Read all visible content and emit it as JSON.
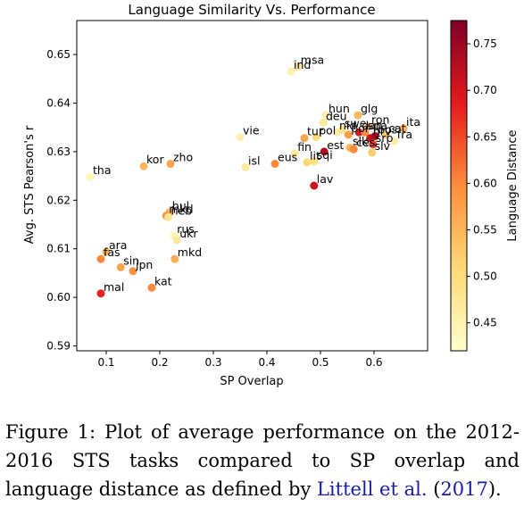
{
  "chart_data": {
    "type": "scatter",
    "title": "Language Similarity Vs. Performance",
    "xlabel": "SP Overlap",
    "ylabel": "Avg. STS Pearson's r",
    "xlim": [
      0.045,
      0.7
    ],
    "ylim": [
      0.589,
      0.657
    ],
    "xticks": [
      "0.1",
      "0.2",
      "0.3",
      "0.4",
      "0.5",
      "0.6"
    ],
    "xtick_values": [
      0.1,
      0.2,
      0.3,
      0.4,
      0.5,
      0.6
    ],
    "yticks": [
      "0.59",
      "0.60",
      "0.61",
      "0.62",
      "0.63",
      "0.64",
      "0.65"
    ],
    "ytick_values": [
      0.59,
      0.6,
      0.61,
      0.62,
      0.63,
      0.64,
      0.65
    ],
    "grid": false,
    "colorbar": {
      "label": "Language Distance",
      "colormap": "YlOrRd",
      "range": [
        0.42,
        0.775
      ],
      "ticks": [
        "0.45",
        "0.50",
        "0.55",
        "0.60",
        "0.65",
        "0.70",
        "0.75"
      ],
      "tick_values": [
        0.45,
        0.5,
        0.55,
        0.6,
        0.65,
        0.7,
        0.75
      ]
    },
    "points": [
      {
        "label": "tha",
        "x": 0.07,
        "y": 0.6248,
        "c": 0.44
      },
      {
        "label": "kor",
        "x": 0.17,
        "y": 0.627,
        "c": 0.55
      },
      {
        "label": "zho",
        "x": 0.22,
        "y": 0.6275,
        "c": 0.57
      },
      {
        "label": "vie",
        "x": 0.35,
        "y": 0.633,
        "c": 0.45
      },
      {
        "label": "isl",
        "x": 0.36,
        "y": 0.6268,
        "c": 0.47
      },
      {
        "label": "eus",
        "x": 0.415,
        "y": 0.6275,
        "c": 0.6
      },
      {
        "label": "ind",
        "x": 0.445,
        "y": 0.6465,
        "c": 0.45
      },
      {
        "label": "msa",
        "x": 0.458,
        "y": 0.6475,
        "c": 0.47
      },
      {
        "label": "fin",
        "x": 0.452,
        "y": 0.6296,
        "c": 0.47
      },
      {
        "label": "lit",
        "x": 0.475,
        "y": 0.6278,
        "c": 0.51
      },
      {
        "label": "sqi",
        "x": 0.488,
        "y": 0.628,
        "c": 0.49
      },
      {
        "label": "lav",
        "x": 0.488,
        "y": 0.623,
        "c": 0.71
      },
      {
        "label": "tur",
        "x": 0.47,
        "y": 0.6328,
        "c": 0.57
      },
      {
        "label": "pol",
        "x": 0.492,
        "y": 0.633,
        "c": 0.5
      },
      {
        "label": "est",
        "x": 0.507,
        "y": 0.63,
        "c": 0.73
      },
      {
        "label": "hun",
        "x": 0.51,
        "y": 0.6375,
        "c": 0.45
      },
      {
        "label": "deu",
        "x": 0.505,
        "y": 0.636,
        "c": 0.47
      },
      {
        "label": "nld",
        "x": 0.53,
        "y": 0.634,
        "c": 0.46
      },
      {
        "label": "swe",
        "x": 0.54,
        "y": 0.6345,
        "c": 0.48
      },
      {
        "label": "por",
        "x": 0.552,
        "y": 0.6335,
        "c": 0.58
      },
      {
        "label": "slk",
        "x": 0.555,
        "y": 0.6308,
        "c": 0.55
      },
      {
        "label": "ces",
        "x": 0.562,
        "y": 0.6305,
        "c": 0.6
      },
      {
        "label": "glg",
        "x": 0.57,
        "y": 0.6375,
        "c": 0.55
      },
      {
        "label": "dan",
        "x": 0.572,
        "y": 0.634,
        "c": 0.7
      },
      {
        "label": "spa",
        "x": 0.583,
        "y": 0.634,
        "c": 0.6
      },
      {
        "label": "ron",
        "x": 0.59,
        "y": 0.6352,
        "c": 0.55
      },
      {
        "label": "hrv",
        "x": 0.593,
        "y": 0.6328,
        "c": 0.71
      },
      {
        "label": "srp",
        "x": 0.598,
        "y": 0.6315,
        "c": 0.66
      },
      {
        "label": "bos",
        "x": 0.602,
        "y": 0.6332,
        "c": 0.74
      },
      {
        "label": "slv",
        "x": 0.596,
        "y": 0.6298,
        "c": 0.52
      },
      {
        "label": "cat",
        "x": 0.622,
        "y": 0.6335,
        "c": 0.52
      },
      {
        "label": "fra",
        "x": 0.638,
        "y": 0.6322,
        "c": 0.46
      },
      {
        "label": "ita",
        "x": 0.655,
        "y": 0.6348,
        "c": 0.56
      },
      {
        "label": "bul",
        "x": 0.218,
        "y": 0.6175,
        "c": 0.55
      },
      {
        "label": "mkd",
        "x": 0.212,
        "y": 0.6168,
        "c": 0.59
      },
      {
        "label": "heb",
        "x": 0.216,
        "y": 0.6165,
        "c": 0.48
      },
      {
        "label": "rus",
        "x": 0.227,
        "y": 0.6127,
        "c": 0.44
      },
      {
        "label": "ukr",
        "x": 0.232,
        "y": 0.6118,
        "c": 0.47
      },
      {
        "label": "mkd",
        "x": 0.228,
        "y": 0.6079,
        "c": 0.56
      },
      {
        "label": "ara",
        "x": 0.1,
        "y": 0.6094,
        "c": 0.56
      },
      {
        "label": "fas",
        "x": 0.09,
        "y": 0.6079,
        "c": 0.6
      },
      {
        "label": "sin",
        "x": 0.127,
        "y": 0.6062,
        "c": 0.57
      },
      {
        "label": "jpn",
        "x": 0.15,
        "y": 0.6054,
        "c": 0.59
      },
      {
        "label": "kat",
        "x": 0.185,
        "y": 0.602,
        "c": 0.6
      },
      {
        "label": "mal",
        "x": 0.09,
        "y": 0.6008,
        "c": 0.68
      }
    ]
  },
  "caption": {
    "text": "Figure 1: Plot of average performance on the 2012-2016 STS tasks compared to SP overlap and language distance as defined by ",
    "cite_author": "Littell et al.",
    "cite_open": " (",
    "cite_year": "2017",
    "cite_close": ")."
  }
}
